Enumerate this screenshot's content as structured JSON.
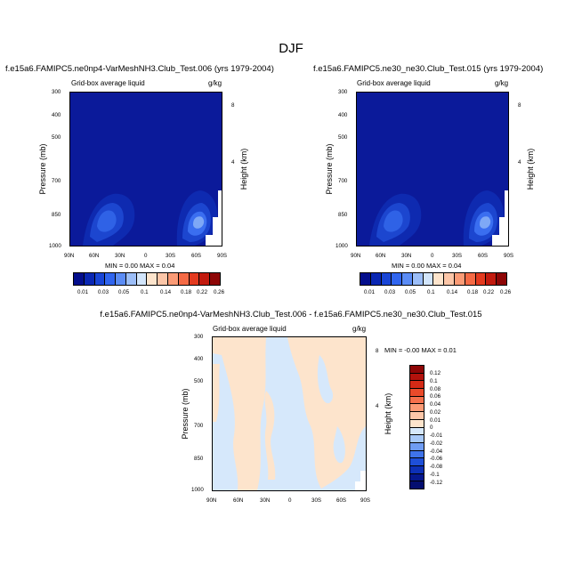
{
  "title": "DJF",
  "colors": {
    "panel_bg": "#0b1a9a",
    "diff_bg": "#d6e8fb",
    "diff_pos": "#fde4cc"
  },
  "chart_data": [
    {
      "type": "heatmap",
      "title": "f.e15a6.FAMIPC5.ne0np4-VarMeshNH3.Club_Test.006 (yrs 1979-2004)",
      "subtitle_left": "Grid-box average liquid",
      "subtitle_right": "g/kg",
      "ylabel": "Pressure (mb)",
      "y2label": "Height (km)",
      "xticks": [
        "90N",
        "60N",
        "30N",
        "0",
        "30S",
        "60S",
        "90S"
      ],
      "yticks": [
        "300",
        "400",
        "500",
        "700",
        "850",
        "1000"
      ],
      "y2ticks": [
        "8",
        "4"
      ],
      "minmax": "MIN =  0.00  MAX =  0.04",
      "colorbar_labels": [
        "0.01",
        "0.03",
        "0.05",
        "0.1",
        "0.14",
        "0.18",
        "0.22",
        "0.26"
      ],
      "colorbar_colors": [
        "#040e8c",
        "#0a27b3",
        "#1945d6",
        "#3065ef",
        "#5b8cf5",
        "#9cbef8",
        "#d2e5fb",
        "#fde4cc",
        "#fcc6a8",
        "#fb9b76",
        "#f56a45",
        "#e33a1f",
        "#c21a0e",
        "#8e0606"
      ]
    },
    {
      "type": "heatmap",
      "title": "f.e15a6.FAMIPC5.ne30_ne30.Club_Test.015 (yrs 1979-2004)",
      "subtitle_left": "Grid-box average liquid",
      "subtitle_right": "g/kg",
      "ylabel": "Pressure (mb)",
      "y2label": "Height (km)",
      "xticks": [
        "90N",
        "60N",
        "30N",
        "0",
        "30S",
        "60S",
        "90S"
      ],
      "yticks": [
        "300",
        "400",
        "500",
        "700",
        "850",
        "1000"
      ],
      "y2ticks": [
        "8",
        "4"
      ],
      "minmax": "MIN =  0.00  MAX =  0.04",
      "colorbar_labels": [
        "0.01",
        "0.03",
        "0.05",
        "0.1",
        "0.14",
        "0.18",
        "0.22",
        "0.26"
      ],
      "colorbar_colors": [
        "#040e8c",
        "#0a27b3",
        "#1945d6",
        "#3065ef",
        "#5b8cf5",
        "#9cbef8",
        "#d2e5fb",
        "#fde4cc",
        "#fcc6a8",
        "#fb9b76",
        "#f56a45",
        "#e33a1f",
        "#c21a0e",
        "#8e0606"
      ]
    },
    {
      "type": "heatmap",
      "title": "f.e15a6.FAMIPC5.ne0np4-VarMeshNH3.Club_Test.006 - f.e15a6.FAMIPC5.ne30_ne30.Club_Test.015",
      "subtitle_left": "Grid-box average liquid",
      "subtitle_right": "g/kg",
      "ylabel": "Pressure (mb)",
      "y2label": "Height (km)",
      "xticks": [
        "90N",
        "60N",
        "30N",
        "0",
        "30S",
        "60S",
        "90S"
      ],
      "yticks": [
        "300",
        "400",
        "500",
        "700",
        "850",
        "1000"
      ],
      "y2ticks": [
        "8",
        "4"
      ],
      "minmax": "MIN = -0.00  MAX =  0.01",
      "colorbar_labels": [
        "0.12",
        "0.1",
        "0.08",
        "0.06",
        "0.04",
        "0.02",
        "0.01",
        "0",
        "-0.01",
        "-0.02",
        "-0.04",
        "-0.06",
        "-0.08",
        "-0.1",
        "-0.12"
      ],
      "colorbar_colors": [
        "#8e0606",
        "#b3120c",
        "#d42a16",
        "#ea4a2a",
        "#f5704c",
        "#fb9b76",
        "#fcc6a8",
        "#fde4cc",
        "#d6e8fb",
        "#a8c9f8",
        "#6f9cf3",
        "#3f73ea",
        "#1e4fd8",
        "#0d30b6",
        "#06188e",
        "#040e70"
      ]
    }
  ]
}
